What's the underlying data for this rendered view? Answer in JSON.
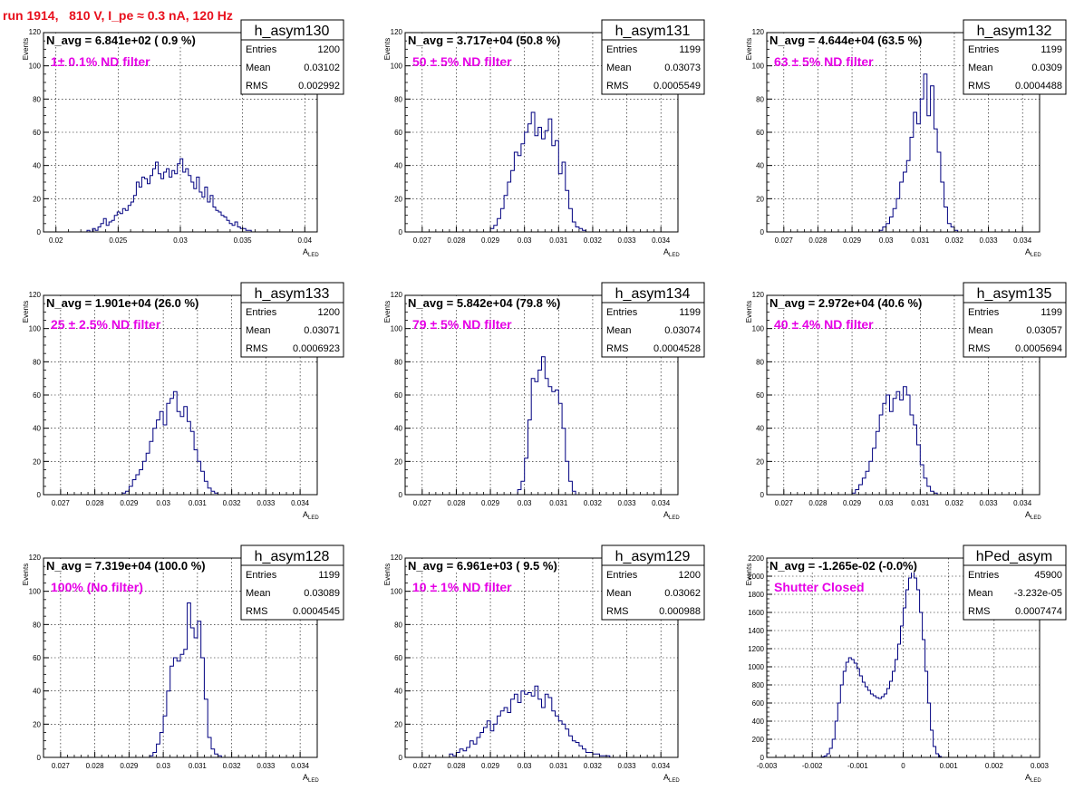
{
  "header": {
    "run_title": "run 1914,   810 V, I_pe ≈ 0.3 nA, 120 Hz"
  },
  "colors": {
    "title": "#e8101d",
    "annotation": "#e600e6",
    "hist": "#000080"
  },
  "stats_labels": {
    "entries": "Entries",
    "mean": "Mean",
    "rms": "RMS"
  },
  "chart_data": [
    {
      "type": "histogram",
      "name": "h_asym130",
      "navg": "N_avg = 6.841e+02 ( 0.9 %)",
      "annotation": "1± 0.1% ND filter",
      "entries": "1200",
      "mean": "0.03102",
      "rms": "0.002992",
      "xlabel": "A",
      "xlabel_sub": "LED",
      "ylabel": "Events",
      "xlim": [
        0.019,
        0.041
      ],
      "ylim": [
        0,
        120
      ],
      "grid": true,
      "xticks": [
        "0.02",
        "0.025",
        "0.03",
        "0.035",
        "0.04"
      ],
      "yticks": [
        "20",
        "40",
        "60",
        "80",
        "100",
        "120"
      ],
      "ytop_label": "120",
      "bins": {
        "start": 0.0225,
        "width": 0.00022,
        "counts": [
          1,
          0,
          2,
          1,
          3,
          5,
          8,
          4,
          6,
          7,
          10,
          12,
          11,
          14,
          13,
          16,
          18,
          22,
          30,
          27,
          33,
          32,
          29,
          34,
          38,
          42,
          35,
          32,
          36,
          38,
          33,
          37,
          35,
          41,
          44,
          36,
          38,
          34,
          30,
          26,
          33,
          24,
          21,
          27,
          18,
          22,
          15,
          13,
          12,
          10,
          9,
          7,
          5,
          4,
          6,
          3,
          2,
          2,
          1,
          1
        ]
      }
    },
    {
      "type": "histogram",
      "name": "h_asym131",
      "navg": "N_avg = 3.717e+04 (50.8 %)",
      "annotation": "50 ± 5% ND filter",
      "entries": "1199",
      "mean": "0.03073",
      "rms": "0.0005549",
      "xlabel": "A",
      "xlabel_sub": "LED",
      "ylabel": "Events",
      "xlim": [
        0.0265,
        0.0345
      ],
      "ylim": [
        0,
        120
      ],
      "grid": true,
      "xticks": [
        "0.027",
        "0.028",
        "0.029",
        "0.03",
        "0.031",
        "0.032",
        "0.033",
        "0.034"
      ],
      "yticks": [
        "20",
        "40",
        "60",
        "80",
        "100",
        "120"
      ],
      "ytop_label": "120",
      "bins": {
        "start": 0.029,
        "width": 0.0001,
        "counts": [
          2,
          4,
          8,
          14,
          22,
          30,
          37,
          48,
          46,
          53,
          60,
          65,
          72,
          58,
          63,
          56,
          61,
          68,
          52,
          55,
          35,
          42,
          25,
          14,
          6,
          3,
          2,
          1
        ]
      }
    },
    {
      "type": "histogram",
      "name": "h_asym132",
      "navg": "N_avg = 4.644e+04 (63.5 %)",
      "annotation": "63 ± 5% ND filter",
      "entries": "1199",
      "mean": "0.0309",
      "rms": "0.0004488",
      "xlabel": "A",
      "xlabel_sub": "LED",
      "ylabel": "Events",
      "xlim": [
        0.0265,
        0.0345
      ],
      "ylim": [
        0,
        120
      ],
      "grid": true,
      "xticks": [
        "0.027",
        "0.028",
        "0.029",
        "0.03",
        "0.031",
        "0.032",
        "0.033",
        "0.034"
      ],
      "yticks": [
        "20",
        "40",
        "60",
        "80",
        "100",
        "120"
      ],
      "ytop_label": "120",
      "bins": {
        "start": 0.0298,
        "width": 0.0001,
        "counts": [
          1,
          3,
          5,
          9,
          14,
          20,
          30,
          36,
          43,
          57,
          72,
          65,
          80,
          95,
          70,
          88,
          62,
          48,
          30,
          15,
          5,
          3,
          1
        ]
      }
    },
    {
      "type": "histogram",
      "name": "h_asym133",
      "navg": "N_avg = 1.901e+04 (26.0 %)",
      "annotation": "25 ± 2.5% ND filter",
      "entries": "1200",
      "mean": "0.03071",
      "rms": "0.0006923",
      "xlabel": "A",
      "xlabel_sub": "LED",
      "ylabel": "Events",
      "xlim": [
        0.0265,
        0.0345
      ],
      "ylim": [
        0,
        120
      ],
      "grid": true,
      "xticks": [
        "0.027",
        "0.028",
        "0.029",
        "0.03",
        "0.031",
        "0.032",
        "0.033",
        "0.034"
      ],
      "yticks": [
        "20",
        "40",
        "60",
        "80",
        "100",
        "120"
      ],
      "ytop_label": "120",
      "bins": {
        "start": 0.0288,
        "width": 0.0001,
        "counts": [
          1,
          2,
          5,
          9,
          12,
          15,
          20,
          25,
          32,
          40,
          45,
          50,
          42,
          55,
          58,
          62,
          50,
          47,
          53,
          44,
          38,
          27,
          20,
          14,
          8,
          4,
          2,
          1
        ]
      }
    },
    {
      "type": "histogram",
      "name": "h_asym134",
      "navg": "N_avg = 5.842e+04 (79.8 %)",
      "annotation": "79 ± 5% ND filter",
      "entries": "1199",
      "mean": "0.03074",
      "rms": "0.0004528",
      "xlabel": "A",
      "xlabel_sub": "LED",
      "ylabel": "Events",
      "xlim": [
        0.0265,
        0.0345
      ],
      "ylim": [
        0,
        120
      ],
      "grid": true,
      "xticks": [
        "0.027",
        "0.028",
        "0.029",
        "0.03",
        "0.031",
        "0.032",
        "0.033",
        "0.034"
      ],
      "yticks": [
        "20",
        "40",
        "60",
        "80",
        "100",
        "120"
      ],
      "ytop_label": "120",
      "bins": {
        "start": 0.0298,
        "width": 0.0001,
        "counts": [
          3,
          8,
          22,
          45,
          70,
          68,
          75,
          83,
          70,
          65,
          62,
          63,
          55,
          40,
          20,
          8,
          2
        ]
      }
    },
    {
      "type": "histogram",
      "name": "h_asym135",
      "navg": "N_avg = 2.972e+04 (40.6 %)",
      "annotation": "40 ± 4% ND filter",
      "entries": "1199",
      "mean": "0.03057",
      "rms": "0.0005694",
      "xlabel": "A",
      "xlabel_sub": "LED",
      "ylabel": "Events",
      "xlim": [
        0.0265,
        0.0345
      ],
      "ylim": [
        0,
        120
      ],
      "grid": true,
      "xticks": [
        "0.027",
        "0.028",
        "0.029",
        "0.03",
        "0.031",
        "0.032",
        "0.033",
        "0.034"
      ],
      "yticks": [
        "20",
        "40",
        "60",
        "80",
        "100",
        "120"
      ],
      "ytop_label": "120",
      "bins": {
        "start": 0.029,
        "width": 0.0001,
        "counts": [
          1,
          3,
          6,
          10,
          14,
          20,
          28,
          38,
          48,
          55,
          60,
          50,
          58,
          62,
          57,
          65,
          60,
          48,
          42,
          30,
          18,
          10,
          5,
          2,
          1
        ]
      }
    },
    {
      "type": "histogram",
      "name": "h_asym128",
      "navg": "N_avg = 7.319e+04 (100.0 %)",
      "annotation": "100% (No filter)",
      "entries": "1199",
      "mean": "0.03089",
      "rms": "0.0004545",
      "xlabel": "A",
      "xlabel_sub": "LED",
      "ylabel": "Events",
      "xlim": [
        0.0265,
        0.0345
      ],
      "ylim": [
        0,
        120
      ],
      "grid": true,
      "xticks": [
        "0.027",
        "0.028",
        "0.029",
        "0.03",
        "0.031",
        "0.032",
        "0.033",
        "0.034"
      ],
      "yticks": [
        "20",
        "40",
        "60",
        "80",
        "100",
        "120"
      ],
      "ytop_label": "120",
      "bins": {
        "start": 0.0296,
        "width": 0.0001,
        "counts": [
          1,
          3,
          8,
          15,
          25,
          40,
          55,
          60,
          58,
          62,
          65,
          93,
          78,
          72,
          82,
          60,
          35,
          12,
          5,
          2,
          1
        ]
      }
    },
    {
      "type": "histogram",
      "name": "h_asym129",
      "navg": "N_avg = 6.961e+03 ( 9.5 %)",
      "annotation": "10 ± 1% ND filter",
      "entries": "1200",
      "mean": "0.03062",
      "rms": "0.000988",
      "xlabel": "A",
      "xlabel_sub": "LED",
      "ylabel": "Events",
      "xlim": [
        0.0265,
        0.0345
      ],
      "ylim": [
        0,
        120
      ],
      "grid": true,
      "xticks": [
        "0.027",
        "0.028",
        "0.029",
        "0.03",
        "0.031",
        "0.032",
        "0.033",
        "0.034"
      ],
      "yticks": [
        "20",
        "40",
        "60",
        "80",
        "100",
        "120"
      ],
      "ytop_label": "120",
      "bins": {
        "start": 0.0278,
        "width": 0.0001,
        "counts": [
          2,
          1,
          3,
          5,
          4,
          6,
          10,
          8,
          12,
          15,
          18,
          22,
          16,
          20,
          25,
          28,
          30,
          27,
          35,
          38,
          33,
          40,
          38,
          39,
          37,
          43,
          35,
          30,
          38,
          36,
          28,
          25,
          22,
          20,
          17,
          13,
          10,
          9,
          7,
          5,
          3,
          3,
          2,
          2,
          1,
          1,
          1
        ]
      }
    },
    {
      "type": "histogram",
      "name": "hPed_asym",
      "navg": "N_avg = -1.265e-02 (-0.0%)",
      "annotation": "Shutter Closed",
      "entries": "45900",
      "mean": "-3.232e-05",
      "rms": "0.0007474",
      "xlabel": "A",
      "xlabel_sub": "LED",
      "ylabel": "Events",
      "xlim": [
        -0.003,
        0.003
      ],
      "ylim": [
        0,
        2200
      ],
      "grid": true,
      "xticks": [
        "-0.003",
        "-0.002",
        "-0.001",
        "0",
        "0.001",
        "0.002",
        "0.003"
      ],
      "yticks": [
        "200",
        "400",
        "600",
        "800",
        "1000",
        "1200",
        "1400",
        "1600",
        "1800",
        "2000",
        "2200"
      ],
      "ytop_label": "",
      "bins": {
        "start": -0.0018,
        "width": 6e-05,
        "counts": [
          5,
          15,
          40,
          100,
          200,
          400,
          600,
          800,
          950,
          1050,
          1100,
          1080,
          1040,
          980,
          900,
          830,
          780,
          740,
          700,
          680,
          660,
          650,
          670,
          700,
          760,
          840,
          950,
          1080,
          1250,
          1450,
          1650,
          1850,
          1980,
          2050,
          1980,
          1850,
          1600,
          1300,
          950,
          600,
          300,
          120,
          40,
          10
        ]
      }
    }
  ]
}
